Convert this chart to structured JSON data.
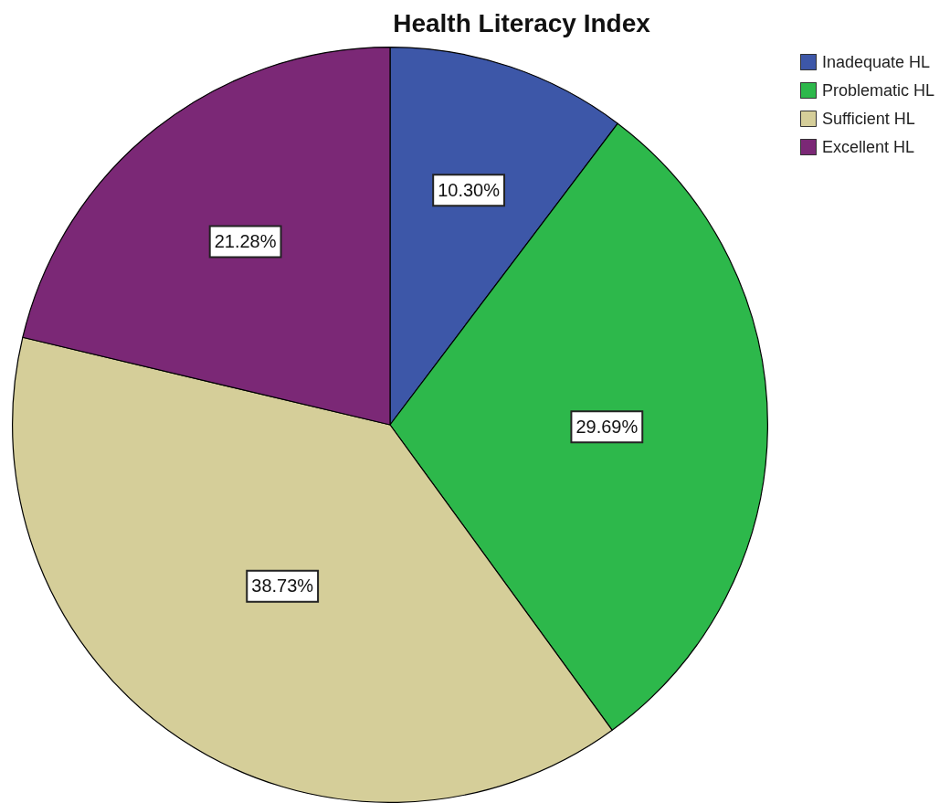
{
  "chart_data": {
    "type": "pie",
    "title": "Health Literacy Index",
    "categories": [
      "Inadequate HL",
      "Problematic HL",
      "Sufficient HL",
      "Excellent HL"
    ],
    "values": [
      10.3,
      29.69,
      38.73,
      21.28
    ],
    "colors": [
      "#3d57a8",
      "#2db84b",
      "#d5ce99",
      "#7b2876"
    ],
    "value_labels": [
      "10.30%",
      "29.69%",
      "38.73%",
      "21.28%"
    ],
    "legend": "top right"
  }
}
